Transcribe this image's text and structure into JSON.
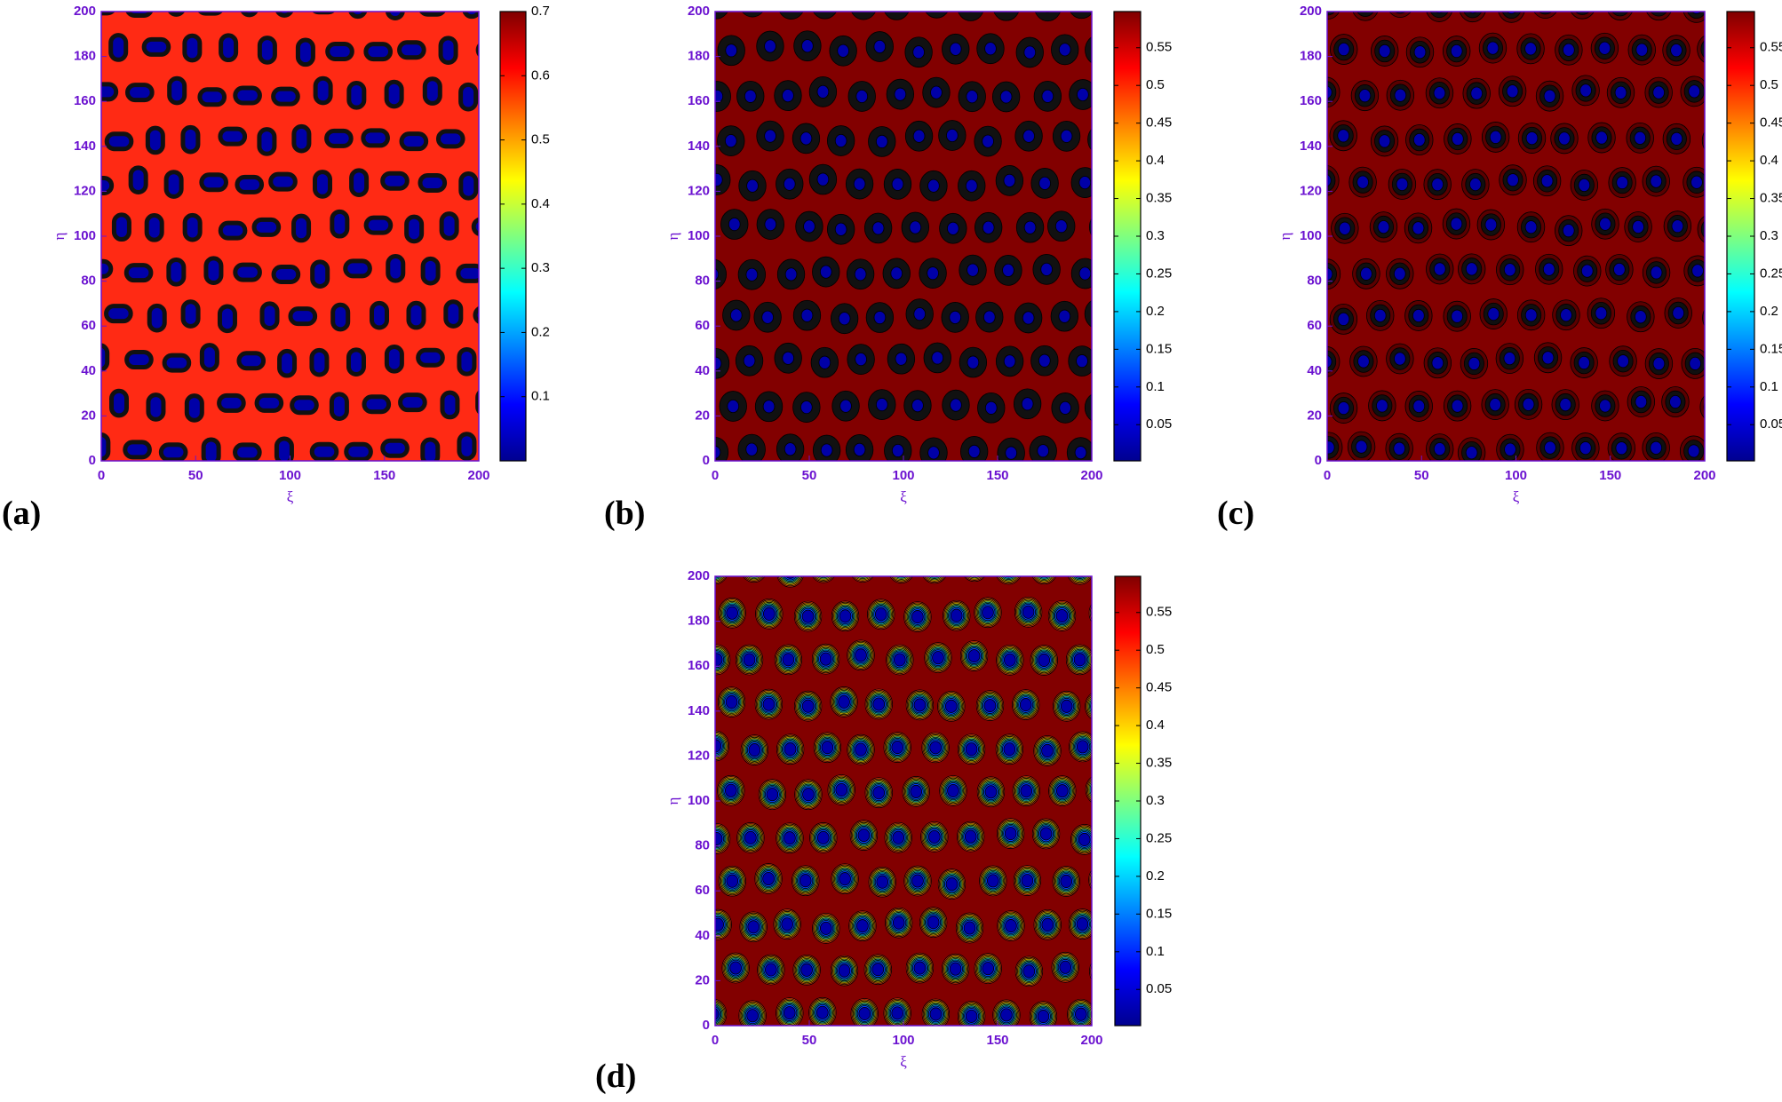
{
  "chart_data": [
    {
      "type": "contour",
      "panel_label": "(a)",
      "xlabel": "ξ",
      "ylabel": "η",
      "xlim": [
        0,
        200
      ],
      "ylim": [
        0,
        200
      ],
      "xticks": [
        0,
        50,
        100,
        150,
        200
      ],
      "yticks": [
        0,
        20,
        40,
        60,
        80,
        100,
        120,
        140,
        160,
        180,
        200
      ],
      "clim": [
        0,
        0.7
      ],
      "cticks": [
        0.1,
        0.2,
        0.3,
        0.4,
        0.5,
        0.6,
        0.7
      ],
      "background_color": "#ff2a14",
      "spot_color": "#0000a8",
      "ring_colors": [
        "#111111"
      ],
      "spot_shape": "rounded"
    },
    {
      "type": "contour",
      "panel_label": "(b)",
      "xlabel": "ξ",
      "ylabel": "η",
      "xlim": [
        0,
        200
      ],
      "ylim": [
        0,
        200
      ],
      "xticks": [
        0,
        50,
        100,
        150,
        200
      ],
      "yticks": [
        0,
        20,
        40,
        60,
        80,
        100,
        120,
        140,
        160,
        180,
        200
      ],
      "clim": [
        0.002,
        0.598
      ],
      "cticks": [
        0.05,
        0.1,
        0.15,
        0.2,
        0.25,
        0.3,
        0.35,
        0.4,
        0.45,
        0.5,
        0.55
      ],
      "background_color": "#820000",
      "spot_color": "#0000a8",
      "ring_colors": [
        "#111111"
      ],
      "spot_shape": "oval"
    },
    {
      "type": "contour",
      "panel_label": "(c)",
      "xlabel": "ξ",
      "ylabel": "η",
      "xlim": [
        0,
        200
      ],
      "ylim": [
        0,
        200
      ],
      "xticks": [
        0,
        50,
        100,
        150,
        200
      ],
      "yticks": [
        0,
        20,
        40,
        60,
        80,
        100,
        120,
        140,
        160,
        180,
        200
      ],
      "clim": [
        0.002,
        0.598
      ],
      "cticks": [
        0.05,
        0.1,
        0.15,
        0.2,
        0.25,
        0.3,
        0.35,
        0.4,
        0.45,
        0.5,
        0.55
      ],
      "background_color": "#820000",
      "spot_color": "#0000a8",
      "ring_colors": [
        "#5a0000",
        "#101010"
      ],
      "spot_shape": "oval"
    },
    {
      "type": "contour",
      "panel_label": "(d)",
      "xlabel": "ξ",
      "ylabel": "η",
      "xlim": [
        0,
        200
      ],
      "ylim": [
        0,
        200
      ],
      "xticks": [
        0,
        50,
        100,
        150,
        200
      ],
      "yticks": [
        0,
        20,
        40,
        60,
        80,
        100,
        120,
        140,
        160,
        180,
        200
      ],
      "clim": [
        0.002,
        0.598
      ],
      "cticks": [
        0.05,
        0.1,
        0.15,
        0.2,
        0.25,
        0.3,
        0.35,
        0.4,
        0.45,
        0.5,
        0.55
      ],
      "background_color": "#820000",
      "spot_color": "#0000a8",
      "ring_colors": [
        "#ff3a10",
        "#ff9a00",
        "#ffe000",
        "#9aff60",
        "#20e0d0",
        "#00a0ff",
        "#0040ff"
      ],
      "spot_shape": "oval"
    }
  ]
}
